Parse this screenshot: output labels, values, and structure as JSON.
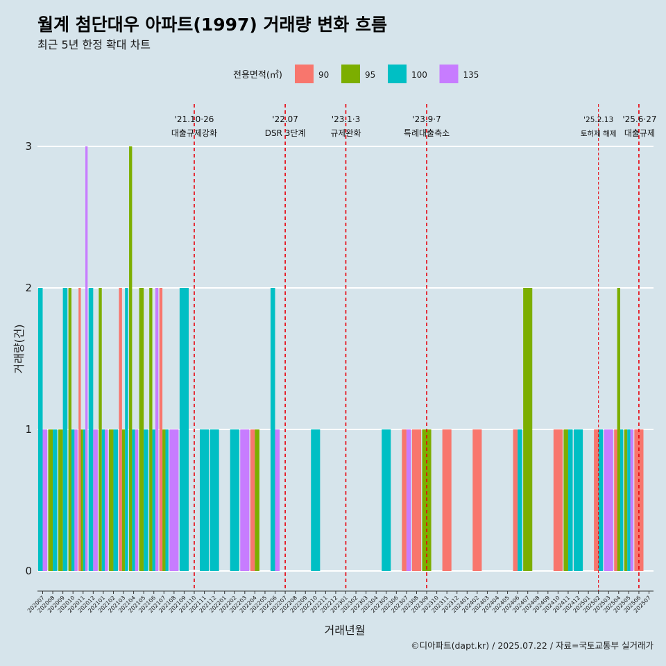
{
  "chart_data": {
    "type": "bar",
    "title": "월계 첨단대우 아파트(1997) 거래량 변화 흐름",
    "subtitle": "최근 5년 한정 확대 차트",
    "xlabel": "거래년월",
    "ylabel": "거래량(건)",
    "ylim": [
      0,
      3
    ],
    "yticks": [
      "0",
      "1",
      "2",
      "3"
    ],
    "legend_title": "전용면적(㎡)",
    "legend_position": "top",
    "grid": true,
    "caption": "©디아파트(dapt.kr) / 2025.07.22 / 자료=국토교통부 실거래가",
    "categories": [
      "202007",
      "202008",
      "202009",
      "202010",
      "202011",
      "202012",
      "202101",
      "202102",
      "202103",
      "202104",
      "202105",
      "202106",
      "202107",
      "202108",
      "202109",
      "202110",
      "202111",
      "202112",
      "202201",
      "202202",
      "202203",
      "202204",
      "202205",
      "202206",
      "202207",
      "202208",
      "202209",
      "202210",
      "202211",
      "202212",
      "202301",
      "202302",
      "202303",
      "202304",
      "202305",
      "202306",
      "202307",
      "202308",
      "202309",
      "202310",
      "202311",
      "202312",
      "202401",
      "202402",
      "202403",
      "202404",
      "202405",
      "202406",
      "202407",
      "202408",
      "202409",
      "202410",
      "202411",
      "202412",
      "202501",
      "202502",
      "202503",
      "202504",
      "202505",
      "202506",
      "202507"
    ],
    "series": [
      {
        "name": "90",
        "color": "#F8766D",
        "values": [
          0,
          0,
          0,
          0,
          2,
          0,
          0,
          0,
          2,
          0,
          0,
          0,
          2,
          0,
          0,
          0,
          0,
          0,
          0,
          0,
          0,
          1,
          0,
          0,
          0,
          0,
          0,
          0,
          0,
          0,
          0,
          0,
          0,
          0,
          0,
          0,
          1,
          1,
          0,
          0,
          1,
          0,
          0,
          1,
          0,
          0,
          0,
          1,
          0,
          0,
          0,
          1,
          0,
          0,
          0,
          1,
          0,
          1,
          0,
          1,
          0
        ]
      },
      {
        "name": "95",
        "color": "#7CAE00",
        "values": [
          0,
          1,
          1,
          2,
          1,
          0,
          2,
          1,
          1,
          3,
          2,
          2,
          1,
          0,
          0,
          0,
          0,
          0,
          0,
          0,
          0,
          1,
          0,
          0,
          0,
          0,
          0,
          0,
          0,
          0,
          0,
          0,
          0,
          0,
          0,
          0,
          0,
          0,
          1,
          0,
          0,
          0,
          0,
          0,
          0,
          0,
          0,
          0,
          2,
          0,
          0,
          0,
          1,
          0,
          0,
          0,
          0,
          2,
          1,
          0,
          0
        ]
      },
      {
        "name": "100",
        "color": "#00BFC4",
        "values": [
          2,
          1,
          2,
          1,
          1,
          2,
          1,
          1,
          2,
          1,
          1,
          1,
          1,
          0,
          2,
          0,
          1,
          1,
          0,
          1,
          0,
          0,
          0,
          2,
          0,
          0,
          0,
          1,
          0,
          0,
          0,
          0,
          0,
          0,
          1,
          0,
          0,
          0,
          0,
          0,
          0,
          0,
          0,
          0,
          0,
          0,
          0,
          1,
          0,
          0,
          0,
          0,
          1,
          1,
          0,
          1,
          0,
          1,
          1,
          0,
          0
        ]
      },
      {
        "name": "135",
        "color": "#C77CFF",
        "values": [
          1,
          0,
          0,
          1,
          3,
          1,
          1,
          0,
          0,
          1,
          0,
          2,
          0,
          1,
          0,
          0,
          0,
          0,
          0,
          0,
          1,
          0,
          0,
          1,
          0,
          0,
          0,
          0,
          0,
          0,
          0,
          0,
          0,
          0,
          0,
          0,
          1,
          0,
          0,
          0,
          0,
          0,
          0,
          0,
          0,
          0,
          0,
          0,
          0,
          0,
          0,
          0,
          0,
          0,
          0,
          0,
          1,
          0,
          1,
          0,
          0
        ]
      }
    ],
    "events": [
      {
        "x": "202110",
        "line1": "'21.10·26",
        "line2": "대출규제강화",
        "style": "dashed"
      },
      {
        "x": "202207",
        "line1": "'22.07",
        "line2": "DSR 3단계",
        "style": "dashed"
      },
      {
        "x": "202301",
        "line1": "'23.1·3",
        "line2": "규제완화",
        "style": "dashed"
      },
      {
        "x": "202309",
        "line1": "'23.9·7",
        "line2": "특례대출축소",
        "style": "dashed"
      },
      {
        "x": "202502",
        "line1": "'25.2.13",
        "line2": "토허제 해제",
        "style": "thin",
        "small": true
      },
      {
        "x": "202506",
        "line1": "'25.6·27",
        "line2": "대출규제",
        "style": "dashed"
      }
    ]
  }
}
